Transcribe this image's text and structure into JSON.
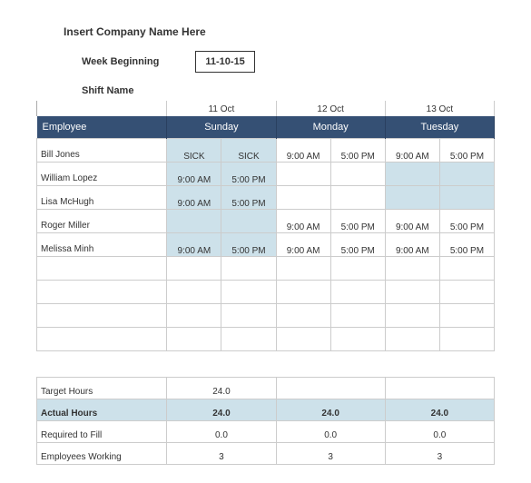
{
  "header": {
    "company": "Insert Company Name Here",
    "week_label": "Week Beginning",
    "week_date": "11-10-15",
    "shift_label": "Shift Name"
  },
  "days": [
    {
      "date": "11 Oct",
      "name": "Sunday"
    },
    {
      "date": "12 Oct",
      "name": "Monday"
    },
    {
      "date": "13 Oct",
      "name": "Tuesday"
    }
  ],
  "employee_col": "Employee",
  "employees": [
    {
      "name": "Bill Jones",
      "slots": [
        "SICK",
        "SICK",
        "9:00 AM",
        "5:00 PM",
        "9:00 AM",
        "5:00 PM"
      ],
      "fill": [
        1,
        1,
        0,
        0,
        0,
        0
      ]
    },
    {
      "name": "William Lopez",
      "slots": [
        "9:00 AM",
        "5:00 PM",
        "",
        "",
        "",
        ""
      ],
      "fill": [
        1,
        1,
        0,
        0,
        1,
        1
      ]
    },
    {
      "name": "Lisa McHugh",
      "slots": [
        "9:00 AM",
        "5:00 PM",
        "",
        "",
        "",
        ""
      ],
      "fill": [
        1,
        1,
        0,
        0,
        1,
        1
      ]
    },
    {
      "name": "Roger Miller",
      "slots": [
        "",
        "",
        "9:00 AM",
        "5:00 PM",
        "9:00 AM",
        "5:00 PM"
      ],
      "fill": [
        1,
        1,
        0,
        0,
        0,
        0
      ]
    },
    {
      "name": "Melissa Minh",
      "slots": [
        "9:00 AM",
        "5:00 PM",
        "9:00 AM",
        "5:00 PM",
        "9:00 AM",
        "5:00 PM"
      ],
      "fill": [
        1,
        1,
        0,
        0,
        0,
        0
      ]
    }
  ],
  "blank_rows": 4,
  "summary": [
    {
      "label": "Target Hours",
      "vals": [
        "24.0",
        "",
        ""
      ],
      "bold": false,
      "hl": false
    },
    {
      "label": "Actual Hours",
      "vals": [
        "24.0",
        "24.0",
        "24.0"
      ],
      "bold": true,
      "hl": true
    },
    {
      "label": "Required to Fill",
      "vals": [
        "0.0",
        "0.0",
        "0.0"
      ],
      "bold": false,
      "hl": false
    },
    {
      "label": "Employees Working",
      "vals": [
        "3",
        "3",
        "3"
      ],
      "bold": false,
      "hl": false
    }
  ],
  "colors": {
    "header_bg": "#355074",
    "fill_bg": "#cde1ea",
    "border": "#cccccc"
  }
}
